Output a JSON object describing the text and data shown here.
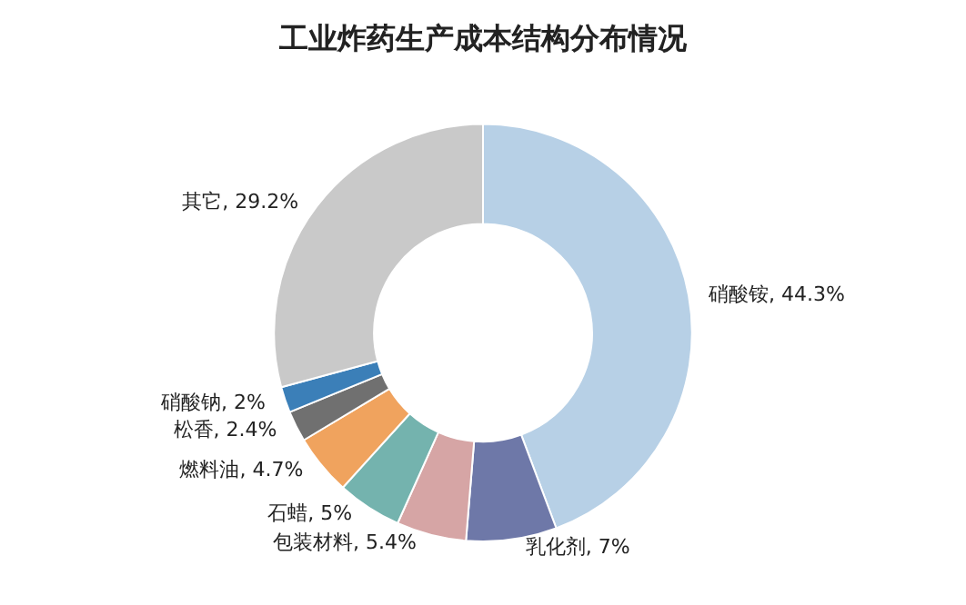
{
  "chart_data": {
    "type": "donut",
    "title": "工业炸药生产成本结构分布情况",
    "categories": [
      "硝酸铵",
      "乳化剂",
      "包装材料",
      "石蜡",
      "燃料油",
      "松香",
      "硝酸钠",
      "其它"
    ],
    "values": [
      44.3,
      7,
      5.4,
      5,
      4.7,
      2.4,
      2,
      29.2
    ],
    "value_labels": [
      "44.3%",
      "7%",
      "5.4%",
      "5%",
      "4.7%",
      "2.4%",
      "2%",
      "29.2%"
    ],
    "colors": [
      "#b7d0e6",
      "#6e78a8",
      "#d6a5a5",
      "#74b3ae",
      "#f0a35e",
      "#707070",
      "#3b7fb8",
      "#c9c9c9"
    ],
    "legend": false
  }
}
